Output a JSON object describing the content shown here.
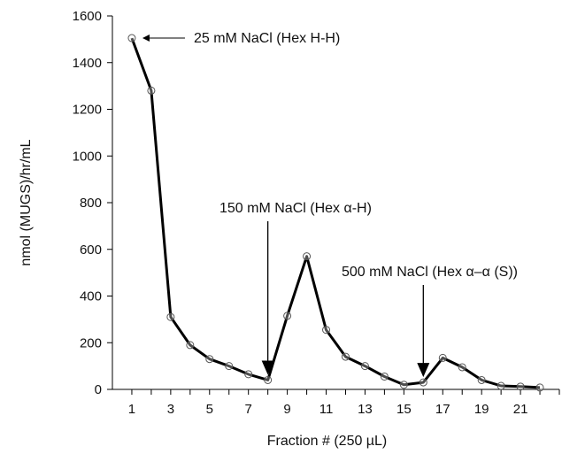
{
  "chart_data": {
    "type": "line",
    "title": "",
    "xlabel": "Fraction # (250 µL)",
    "ylabel": "nmol (MUGS)/hr/mL",
    "xlim": [
      0,
      23
    ],
    "ylim": [
      0,
      1600
    ],
    "x_tick_labels": [
      "1",
      "3",
      "5",
      "7",
      "9",
      "11",
      "13",
      "15",
      "17",
      "19",
      "21"
    ],
    "y_tick_labels": [
      "0",
      "200",
      "400",
      "600",
      "800",
      "1000",
      "1200",
      "1400",
      "1600"
    ],
    "grid": false,
    "series": [
      {
        "x": [
          1,
          2,
          3,
          4,
          5,
          6,
          7,
          8,
          9,
          10,
          11,
          12,
          13,
          14,
          15,
          16,
          17,
          18,
          19,
          20,
          21,
          22
        ],
        "y": [
          1505,
          1280,
          310,
          190,
          130,
          100,
          65,
          40,
          315,
          570,
          255,
          140,
          100,
          55,
          20,
          30,
          135,
          95,
          40,
          15,
          12,
          8
        ]
      }
    ],
    "annotations": [
      {
        "text": "25 mM NaCl (Hex H-H)",
        "x": 1,
        "arrow": "left"
      },
      {
        "text": "150 mM NaCl (Hex α-H)",
        "x": 8,
        "arrow": "down"
      },
      {
        "text": "500 mM NaCl (Hex α–α (S))",
        "x": 16,
        "arrow": "down"
      }
    ],
    "colors": {
      "line": "#000000",
      "marker_stroke": "#555555",
      "marker_fill": "#ffffff"
    }
  }
}
